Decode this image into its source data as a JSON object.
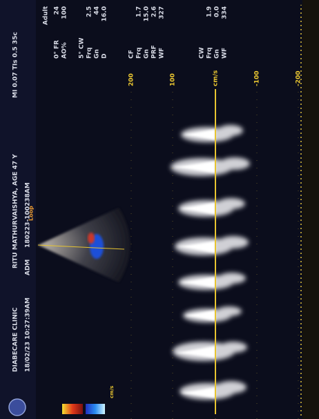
{
  "header": {
    "clinic": "DIABECARE CLINIC",
    "datetime": "18/02/23 10:27:39AM",
    "operator": "ADM",
    "patient": "RITU MATHURVAISHYA, AGE 47 Y",
    "study_id": "180223-100238AM",
    "indices": "MI 0.07  TIs 0.5  35c"
  },
  "preset": "Adult",
  "params": [
    [
      [
        "0° FR",
        "24"
      ],
      [
        "AO%",
        "100"
      ]
    ],
    [
      [
        "5° CW"
      ],
      [
        "Frq",
        "2.5"
      ],
      [
        "Gn",
        "44"
      ],
      [
        "D",
        "16.0"
      ]
    ],
    [
      [
        "CF"
      ],
      [
        "Frq",
        "1.7"
      ],
      [
        "Gn",
        "15.0"
      ],
      [
        "PRF",
        "2.6"
      ],
      [
        "WF",
        "327"
      ]
    ],
    [
      [
        "CW"
      ],
      [
        "Frq",
        "1.9"
      ],
      [
        "Gn",
        "0.0"
      ],
      [
        "WF",
        "334"
      ]
    ]
  ],
  "velocity_scale": [
    "200",
    "100",
    "cm/s",
    "-100",
    "-200"
  ],
  "loop": "Loop",
  "color_bar_unit": "cm/s"
}
